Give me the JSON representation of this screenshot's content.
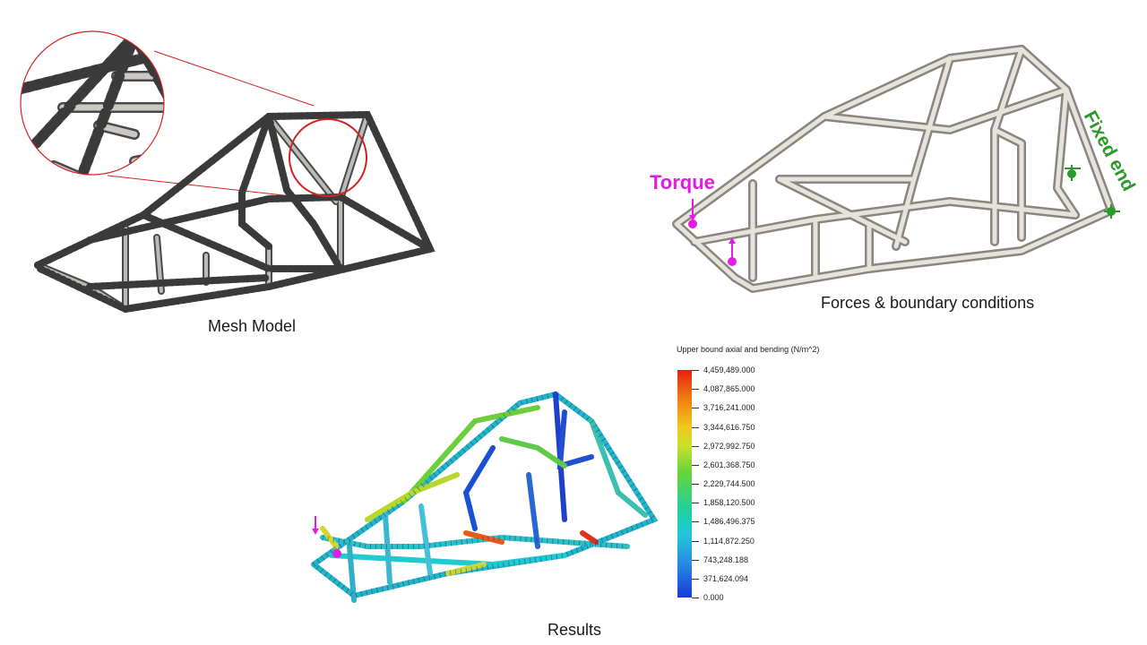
{
  "panels": {
    "mesh": {
      "caption": "Mesh Model"
    },
    "forces": {
      "caption": "Forces & boundary conditions",
      "torque_label": "Torque",
      "fixed_label": "Fixed end",
      "colors": {
        "torque": "#e21de2",
        "fixed": "#2a9a2a"
      }
    },
    "results": {
      "caption": "Results"
    }
  },
  "legend": {
    "title": "Upper bound axial and bending (N/m^2)",
    "ticks": [
      "4,459,489.000",
      "4,087,865.000",
      "3,716,241.000",
      "3,344,616.750",
      "2,972,992.750",
      "2,601,368.750",
      "2,229,744.500",
      "1,858,120.500",
      "1,486,496.375",
      "1,114,872.250",
      "743,248.188",
      "371,624.094",
      "0.000"
    ]
  },
  "colors": {
    "mesh_tube": "#5a5a5a",
    "mesh_tube_light": "#c9c7c4",
    "frame_tube": "#b8b3ab",
    "frame_tube_light": "#ece9e4",
    "zoom_ring": "#d22222"
  }
}
